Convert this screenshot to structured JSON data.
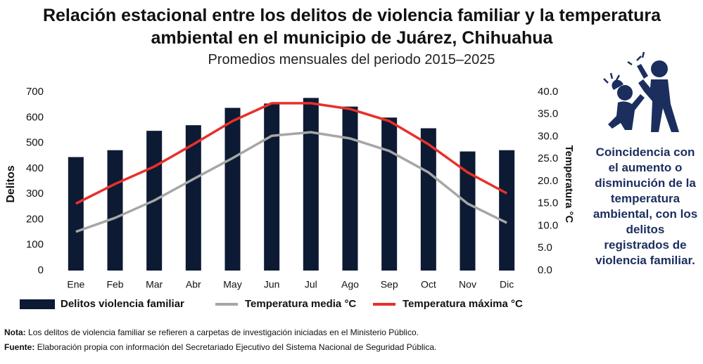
{
  "chart_data": {
    "type": "bar",
    "title": "Relación estacional entre los delitos de violencia familiar y la temperatura ambiental en el municipio de Juárez, Chihuahua",
    "subtitle": "Promedios mensuales del periodo 2015–2025",
    "y_label": "Delitos",
    "y2_label": "Temperatura °C",
    "categories": [
      "Ene",
      "Feb",
      "Mar",
      "Abr",
      "May",
      "Jun",
      "Jul",
      "Ago",
      "Sep",
      "Oct",
      "Nov",
      "Dic"
    ],
    "series": [
      {
        "name": "Delitos violencia familiar",
        "type": "bar",
        "color": "#0d1a33",
        "values": [
          445,
          472,
          548,
          570,
          638,
          655,
          677,
          643,
          600,
          558,
          467,
          472
        ]
      },
      {
        "name": "Temperatura media °C",
        "type": "line",
        "axis": "y2",
        "color": "#a6a6a6",
        "values": [
          8.7,
          11.8,
          15.7,
          20.5,
          25.2,
          30.2,
          31.0,
          29.6,
          26.8,
          22.0,
          15.0,
          10.7
        ]
      },
      {
        "name": "Temperatura máxima °C",
        "type": "line",
        "axis": "y2",
        "color": "#e8302a",
        "values": [
          15.0,
          19.4,
          23.3,
          28.3,
          33.5,
          37.5,
          37.5,
          36.2,
          33.5,
          28.3,
          22.0,
          17.3
        ]
      }
    ],
    "ylim": [
      0,
      700
    ],
    "yticks": [
      0,
      100,
      200,
      300,
      400,
      500,
      600,
      700
    ],
    "y2lim": [
      0,
      40
    ],
    "y2ticks": [
      {
        "value": 0,
        "label": "0.0"
      },
      {
        "value": 5,
        "label": "5.0"
      },
      {
        "value": 10,
        "label": "10.0"
      },
      {
        "value": 15,
        "label": "15.0"
      },
      {
        "value": 20,
        "label": "20.0"
      },
      {
        "value": 25,
        "label": "25.0"
      },
      {
        "value": 30,
        "label": "30.0"
      },
      {
        "value": 35,
        "label": "35.0"
      },
      {
        "value": 40,
        "label": "40.0"
      }
    ],
    "grid": false,
    "side_note": "Coincidencia con el aumento o disminución de la temperatura ambiental, con los delitos registrados de violencia familiar.",
    "notes": [
      {
        "label": "Nota:",
        "text": "Los delitos de violencia familiar se refieren a carpetas de investigación iniciadas en el Ministerio Público."
      },
      {
        "label": "Fuente:",
        "text": "Elaboración propia con información del Secretariado Ejecutivo del Sistema Nacional de Seguridad Pública."
      }
    ]
  }
}
